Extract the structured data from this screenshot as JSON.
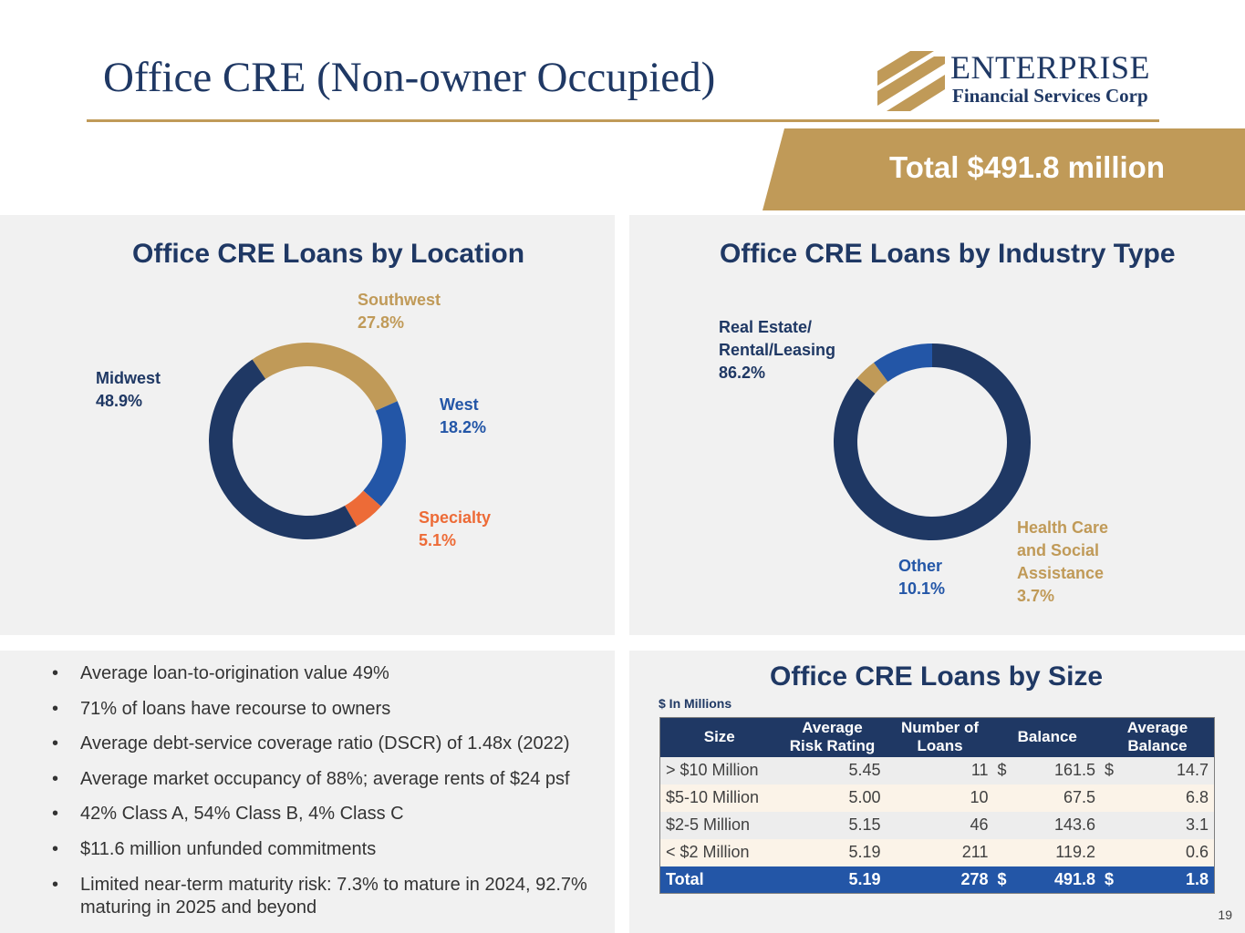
{
  "header": {
    "title": "Office CRE (Non-owner Occupied)",
    "logo_name": "ENTERPRISE",
    "logo_sub": "Financial Services Corp",
    "total": "Total $491.8 million"
  },
  "colors": {
    "navy": "#1f3864",
    "blue": "#2356a7",
    "gold": "#c09a58",
    "orange": "#ed6b37"
  },
  "chart_data": [
    {
      "type": "pie",
      "style": "donut",
      "title": "Office CRE Loans by Location",
      "unit": "%",
      "slices": [
        {
          "label": "Southwest",
          "value": 27.8,
          "value_text": "27.8%",
          "color": "#c09a58"
        },
        {
          "label": "West",
          "value": 18.2,
          "value_text": "18.2%",
          "color": "#2356a7"
        },
        {
          "label": "Specialty",
          "value": 5.1,
          "value_text": "5.1%",
          "color": "#ed6b37"
        },
        {
          "label": "Midwest",
          "value": 48.9,
          "value_text": "48.9%",
          "color": "#1f3864"
        }
      ]
    },
    {
      "type": "pie",
      "style": "donut",
      "title": "Office CRE Loans by Industry Type",
      "unit": "%",
      "slices": [
        {
          "label": "Real Estate/\nRental/Leasing",
          "value": 86.2,
          "value_text": "86.2%",
          "color": "#1f3864"
        },
        {
          "label": "Health Care\nand Social\nAssistance",
          "value": 3.7,
          "value_text": "3.7%",
          "color": "#c09a58"
        },
        {
          "label": "Other",
          "value": 10.1,
          "value_text": "10.1%",
          "color": "#2356a7"
        }
      ]
    },
    {
      "type": "table",
      "title": "Office CRE Loans by Size",
      "units_note": "$ In Millions",
      "columns": [
        "Size",
        "Average\nRisk Rating",
        "Number of\nLoans",
        "Balance",
        "Average\nBalance"
      ],
      "rows": [
        {
          "size": "> $10 Million",
          "rating": "5.45",
          "count": "11",
          "bal_sym": "$",
          "balance": "161.5",
          "avg_sym": "$",
          "avg": "14.7"
        },
        {
          "size": "$5-10 Million",
          "rating": "5.00",
          "count": "10",
          "bal_sym": "",
          "balance": "67.5",
          "avg_sym": "",
          "avg": "6.8"
        },
        {
          "size": "$2-5 Million",
          "rating": "5.15",
          "count": "46",
          "bal_sym": "",
          "balance": "143.6",
          "avg_sym": "",
          "avg": "3.1"
        },
        {
          "size": "< $2 Million",
          "rating": "5.19",
          "count": "211",
          "bal_sym": "",
          "balance": "119.2",
          "avg_sym": "",
          "avg": "0.6"
        }
      ],
      "total": {
        "size": "Total",
        "rating": "5.19",
        "count": "278",
        "bal_sym": "$",
        "balance": "491.8",
        "avg_sym": "$",
        "avg": "1.8"
      }
    }
  ],
  "bullets": [
    "Average loan-to-origination value 49%",
    "71% of loans have recourse to owners",
    "Average debt-service coverage ratio (DSCR) of 1.48x (2022)",
    "Average market occupancy of 88%; average rents of $24 psf",
    "42% Class A, 54% Class B, 4% Class C",
    "$11.6 million unfunded commitments",
    "Limited near-term maturity risk: 7.3% to mature in 2024, 92.7% maturing in 2025 and beyond"
  ],
  "page_number": "19"
}
